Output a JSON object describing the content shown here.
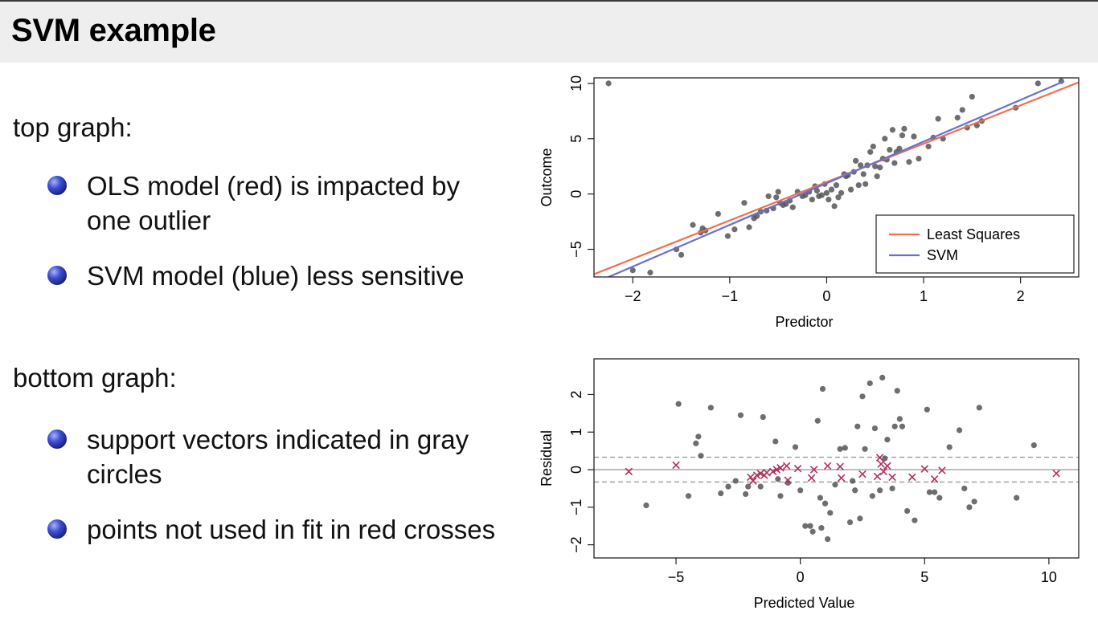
{
  "slide": {
    "title": "SVM example"
  },
  "text": {
    "top_label": "top graph:",
    "top_bullets": [
      "OLS model (red) is impacted by one outlier",
      "SVM model (blue) less sensitive"
    ],
    "bottom_label": "bottom graph:",
    "bottom_bullets": [
      "support vectors indicated in gray circles",
      "points not used in fit in red crosses"
    ]
  },
  "colors": {
    "least_squares": "#f07050",
    "svm": "#6670d0",
    "points": "#555555",
    "crosses": "#b0305a",
    "bullet": "#2a36b0"
  },
  "chart_data": [
    {
      "type": "scatter",
      "title": "",
      "xlabel": "Predictor",
      "ylabel": "Outcome",
      "xlim": [
        -2.4,
        2.6
      ],
      "ylim": [
        -7.5,
        10.5
      ],
      "xticks": [
        -2,
        -1,
        0,
        1,
        2
      ],
      "xtick_labels": [
        "−2",
        "−1",
        "0",
        "1",
        "2"
      ],
      "yticks": [
        -5,
        0,
        5,
        10
      ],
      "ytick_labels": [
        "−5",
        "0",
        "5",
        "10"
      ],
      "legend": {
        "placement": "bottom-right",
        "entries": [
          "Least Squares",
          "SVM"
        ]
      },
      "points": {
        "x": [
          -2.25,
          -2.0,
          -1.82,
          -1.55,
          -1.5,
          -1.38,
          -1.3,
          -1.28,
          -1.25,
          -1.12,
          -1.02,
          -0.95,
          -0.85,
          -0.8,
          -0.75,
          -0.72,
          -0.68,
          -0.62,
          -0.6,
          -0.55,
          -0.52,
          -0.5,
          -0.48,
          -0.45,
          -0.42,
          -0.38,
          -0.35,
          -0.3,
          -0.25,
          -0.22,
          -0.18,
          -0.15,
          -0.12,
          -0.1,
          -0.08,
          -0.05,
          -0.02,
          0.0,
          0.02,
          0.05,
          0.08,
          0.1,
          0.12,
          0.15,
          0.18,
          0.2,
          0.22,
          0.25,
          0.28,
          0.3,
          0.33,
          0.35,
          0.38,
          0.4,
          0.42,
          0.45,
          0.48,
          0.5,
          0.52,
          0.55,
          0.58,
          0.6,
          0.62,
          0.65,
          0.68,
          0.7,
          0.72,
          0.75,
          0.78,
          0.8,
          0.85,
          0.9,
          0.95,
          1.05,
          1.1,
          1.15,
          1.2,
          1.35,
          1.4,
          1.45,
          1.5,
          1.55,
          1.6,
          1.95,
          2.18,
          2.42
        ],
        "y": [
          10.0,
          -6.9,
          -7.1,
          -5.0,
          -5.5,
          -2.8,
          -3.5,
          -3.1,
          -3.3,
          -1.8,
          -3.8,
          -3.2,
          -0.8,
          -3.0,
          -2.2,
          -2.0,
          -1.6,
          -1.5,
          -0.2,
          -1.3,
          -0.3,
          0.2,
          -0.8,
          -1.0,
          -0.9,
          -0.6,
          -1.2,
          0.2,
          -0.2,
          -0.1,
          0.2,
          -0.5,
          0.7,
          0.3,
          -0.2,
          -0.1,
          0.9,
          0.1,
          -0.5,
          0.4,
          -1.1,
          0.8,
          -0.3,
          0.1,
          1.8,
          1.6,
          1.7,
          0.4,
          2.0,
          3.0,
          0.8,
          2.6,
          1.8,
          0.9,
          2.6,
          3.8,
          4.3,
          2.5,
          1.6,
          2.4,
          3.2,
          5.0,
          3.1,
          4.0,
          5.8,
          2.8,
          3.8,
          4.1,
          5.3,
          5.9,
          2.9,
          5.2,
          3.2,
          4.3,
          5.1,
          6.8,
          5.0,
          6.9,
          7.6,
          6.0,
          8.8,
          6.2,
          6.6,
          7.8,
          10.0,
          10.2
        ]
      },
      "series": [
        {
          "name": "Least Squares",
          "x": [
            -2.4,
            2.6
          ],
          "y": [
            -7.25,
            10.1
          ]
        },
        {
          "name": "SVM",
          "x": [
            -2.25,
            2.45
          ],
          "y": [
            -7.5,
            10.2
          ]
        }
      ]
    },
    {
      "type": "scatter",
      "title": "",
      "xlabel": "Predicted Value",
      "ylabel": "Residual",
      "xlim": [
        -8.3,
        11.2
      ],
      "ylim": [
        -2.35,
        2.95
      ],
      "xticks": [
        -5,
        0,
        5,
        10
      ],
      "xtick_labels": [
        "−5",
        "0",
        "5",
        "10"
      ],
      "yticks": [
        -2,
        -1,
        0,
        1,
        2
      ],
      "ytick_labels": [
        "−2",
        "−1",
        "0",
        "1",
        "2"
      ],
      "reference_lines": {
        "zero": 0,
        "band": [
          -0.33,
          0.33
        ]
      },
      "support_vectors": {
        "x": [
          -6.2,
          -4.9,
          -4.5,
          -4.2,
          -4.1,
          -4.0,
          -3.6,
          -3.2,
          -2.9,
          -2.6,
          -2.4,
          -2.2,
          -2.1,
          -1.6,
          -1.5,
          -1.0,
          -0.9,
          -0.8,
          -0.5,
          -0.2,
          0.0,
          0.2,
          0.4,
          0.5,
          0.7,
          0.8,
          0.85,
          0.9,
          1.0,
          1.1,
          1.2,
          1.4,
          1.6,
          1.8,
          2.0,
          2.1,
          2.2,
          2.3,
          2.4,
          2.5,
          2.6,
          2.8,
          2.9,
          3.0,
          3.2,
          3.3,
          3.4,
          3.5,
          3.7,
          3.8,
          3.9,
          4.0,
          4.1,
          4.3,
          4.6,
          5.1,
          5.2,
          5.4,
          5.6,
          6.0,
          6.4,
          6.6,
          6.8,
          7.0,
          7.2,
          8.7,
          9.4
        ],
        "y": [
          -0.95,
          1.75,
          -0.7,
          0.7,
          0.88,
          0.37,
          1.65,
          -0.63,
          -0.45,
          -0.3,
          1.45,
          -0.65,
          -0.45,
          -0.45,
          1.4,
          0.75,
          -0.25,
          -0.7,
          -0.35,
          0.6,
          -0.55,
          -1.5,
          -1.5,
          -1.65,
          1.3,
          -0.75,
          -1.55,
          2.15,
          -0.9,
          -1.85,
          -1.15,
          -0.4,
          0.55,
          0.58,
          -1.4,
          -0.3,
          -0.55,
          1.15,
          -1.3,
          1.95,
          0.55,
          2.3,
          -0.7,
          1.1,
          -0.55,
          2.45,
          0.3,
          0.8,
          -0.5,
          1.15,
          2.1,
          1.35,
          1.15,
          -1.1,
          -1.35,
          1.6,
          -0.6,
          -0.6,
          -0.75,
          0.6,
          1.05,
          -0.5,
          -1.0,
          -0.85,
          1.65,
          -0.75,
          0.65
        ]
      },
      "non_support": {
        "x": [
          -6.9,
          -5.0,
          -2.0,
          -1.9,
          -1.75,
          -1.6,
          -1.45,
          -1.35,
          -1.1,
          -0.95,
          -0.8,
          -0.55,
          -0.5,
          -0.1,
          0.45,
          0.55,
          1.1,
          1.6,
          1.65,
          2.5,
          3.1,
          3.2,
          3.25,
          3.35,
          3.5,
          3.7,
          4.5,
          5.0,
          5.4,
          5.7,
          10.3
        ],
        "y": [
          -0.05,
          0.12,
          -0.2,
          -0.3,
          -0.15,
          -0.1,
          -0.15,
          -0.08,
          -0.05,
          0.0,
          0.05,
          0.1,
          -0.28,
          0.03,
          -0.22,
          0.0,
          0.1,
          0.08,
          -0.22,
          -0.12,
          -0.18,
          0.32,
          0.15,
          -0.05,
          0.1,
          -0.2,
          -0.2,
          0.02,
          -0.25,
          -0.02,
          -0.1
        ]
      }
    }
  ]
}
